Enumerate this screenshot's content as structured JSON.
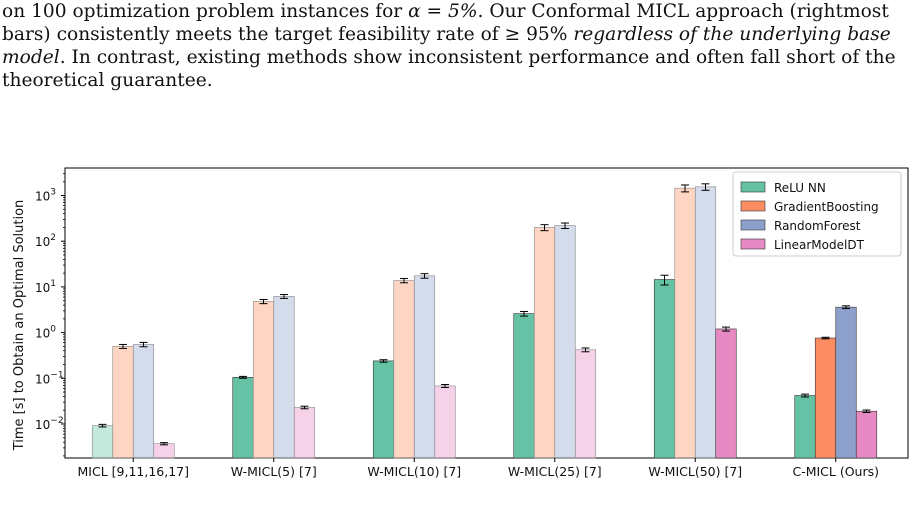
{
  "caption": {
    "lines": [
      {
        "parts": [
          {
            "t": "on 100 optimization problem instances for "
          },
          {
            "t": "α = 5%",
            "math": true
          },
          {
            "t": ". Our Conformal MICL approach (rightmost"
          }
        ]
      },
      {
        "parts": [
          {
            "t": "bars) consistently meets the target feasibility rate of ≥ 95% "
          },
          {
            "t": "regardless of the underlying base",
            "em": true
          }
        ]
      },
      {
        "parts": [
          {
            "t": "model",
            "em": true
          },
          {
            "t": ". In contrast, existing methods show inconsistent performance and often fall short of the"
          }
        ]
      },
      {
        "parts": [
          {
            "t": "theoretical guarantee."
          }
        ]
      }
    ]
  },
  "chart_data": {
    "type": "bar",
    "ylabel": "Time [s] to Obtain an Optimal Solution",
    "yscale": "log",
    "ylim": [
      0.0018,
      4000
    ],
    "yticks": [
      {
        "v": 0.01,
        "label": "10",
        "exp": "−2"
      },
      {
        "v": 0.1,
        "label": "10",
        "exp": "−1"
      },
      {
        "v": 1,
        "label": "10",
        "exp": "0"
      },
      {
        "v": 10,
        "label": "10",
        "exp": "1"
      },
      {
        "v": 100,
        "label": "10",
        "exp": "2"
      },
      {
        "v": 1000,
        "label": "10",
        "exp": "3"
      }
    ],
    "categories": [
      "MICL [9,11,16,17]",
      "W-MICL(5) [7]",
      "W-MICL(10) [7]",
      "W-MICL(25) [7]",
      "W-MICL(50) [7]",
      "C-MICL (Ours)"
    ],
    "highlight_category": 5,
    "legend_position": "top-right",
    "series": [
      {
        "name": "ReLU NN",
        "color": "#66c2a5",
        "values": [
          0.0092,
          0.105,
          0.24,
          2.6,
          14.5,
          0.042
        ],
        "err": [
          0.0006,
          0.005,
          0.015,
          0.3,
          3.5,
          0.003
        ]
      },
      {
        "name": "GradientBoosting",
        "color": "#fc8d62",
        "values": [
          0.5,
          4.8,
          13.8,
          200,
          1450,
          0.76
        ],
        "err": [
          0.05,
          0.5,
          1.5,
          30,
          250,
          0.03
        ]
      },
      {
        "name": "RandomForest",
        "color": "#8da0cb",
        "values": [
          0.55,
          6.2,
          17.5,
          220,
          1550,
          3.6
        ],
        "err": [
          0.06,
          0.6,
          2.0,
          30,
          250,
          0.25
        ]
      },
      {
        "name": "LinearModelDT",
        "color": "#e78ac3",
        "values": [
          0.0037,
          0.023,
          0.068,
          0.42,
          1.2,
          0.019
        ],
        "err": [
          0.0002,
          0.0015,
          0.005,
          0.04,
          0.12,
          0.0012
        ]
      }
    ]
  }
}
